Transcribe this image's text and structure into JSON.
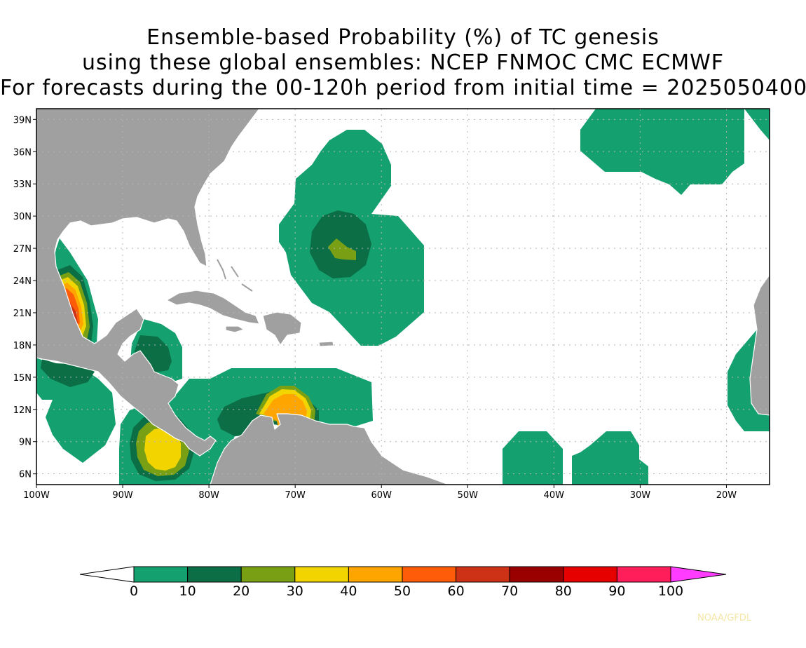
{
  "title": {
    "line1": "Ensemble-based Probability (%) of TC genesis",
    "line2": "using these global ensembles:   NCEP FNMOC CMC ECMWF",
    "line3": "For forecasts during the 00-120h period from initial time = 2025050400"
  },
  "map": {
    "lon_range": [
      -100,
      -15
    ],
    "lat_range": [
      5,
      40
    ],
    "lon_ticks": [
      {
        "value": -100,
        "label": "100W"
      },
      {
        "value": -90,
        "label": "90W"
      },
      {
        "value": -80,
        "label": "80W"
      },
      {
        "value": -70,
        "label": "70W"
      },
      {
        "value": -60,
        "label": "60W"
      },
      {
        "value": -50,
        "label": "50W"
      },
      {
        "value": -40,
        "label": "40W"
      },
      {
        "value": -30,
        "label": "30W"
      },
      {
        "value": -20,
        "label": "20W"
      }
    ],
    "lat_ticks": [
      {
        "value": 6,
        "label": "6N"
      },
      {
        "value": 9,
        "label": "9N"
      },
      {
        "value": 12,
        "label": "12N"
      },
      {
        "value": 15,
        "label": "15N"
      },
      {
        "value": 18,
        "label": "18N"
      },
      {
        "value": 21,
        "label": "21N"
      },
      {
        "value": 24,
        "label": "24N"
      },
      {
        "value": 27,
        "label": "27N"
      },
      {
        "value": 30,
        "label": "30N"
      },
      {
        "value": 33,
        "label": "33N"
      },
      {
        "value": 36,
        "label": "36N"
      },
      {
        "value": 39,
        "label": "39N"
      }
    ],
    "grid": true,
    "land_color": "#a0a0a0",
    "ocean_color": "#ffffff"
  },
  "colorbar": {
    "labels": [
      "0",
      "10",
      "20",
      "30",
      "40",
      "50",
      "60",
      "70",
      "80",
      "90",
      "100"
    ],
    "colors": [
      "#15a070",
      "#0b6e45",
      "#79a015",
      "#f2d500",
      "#ffa500",
      "#ff5c0a",
      "#cd3216",
      "#9a0000",
      "#e60000",
      "#ff1e5a"
    ],
    "under_color": "#ffffff",
    "over_color": "#ff3cff"
  },
  "probability_levels": {
    "g1": "#15a070",
    "g2": "#0b6e45",
    "olive": "#79a015",
    "yellow": "#f2d500",
    "orange": "#ffa500",
    "dorange": "#ff5c0a",
    "red": "#cd3216"
  },
  "credit": "NOAA/GFDL"
}
